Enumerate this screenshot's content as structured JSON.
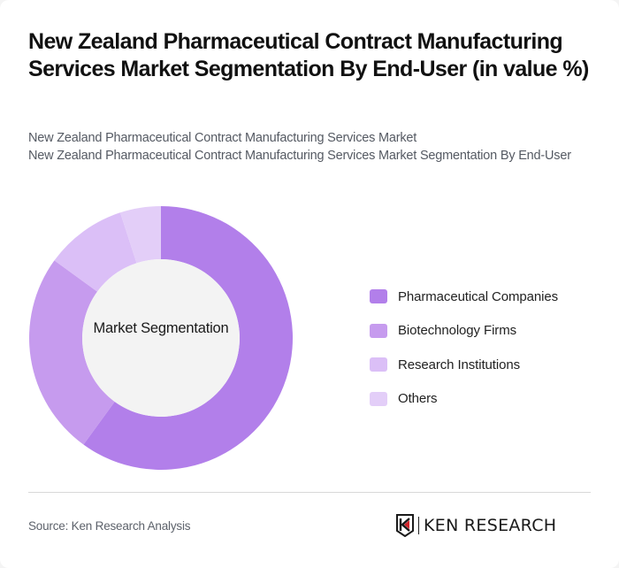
{
  "header": {
    "title": "New Zealand Pharmaceutical Contract Manufacturing Services Market Segmentation By End-User (in value %)",
    "subtitle_line1": "New Zealand Pharmaceutical Contract Manufacturing Services Market",
    "subtitle_line2": "New Zealand Pharmaceutical Contract Manufacturing Services Market Segmentation By End-User"
  },
  "chart": {
    "center_label": "Market Segmentation"
  },
  "legend": [
    {
      "label": "Pharmaceutical Companies",
      "color": "#b27fea"
    },
    {
      "label": "Biotechnology Firms",
      "color": "#c69bee"
    },
    {
      "label": "Research Institutions",
      "color": "#dbbff7"
    },
    {
      "label": "Others",
      "color": "#e3cef8"
    }
  ],
  "footer": {
    "source": "Source: Ken Research Analysis",
    "logo_text": "KEN RESEARCH"
  },
  "chart_data": {
    "type": "pie",
    "variant": "donut",
    "title": "New Zealand Pharmaceutical Contract Manufacturing Services Market Segmentation By End-User (in value %)",
    "center_label": "Market Segmentation",
    "categories": [
      "Pharmaceutical Companies",
      "Biotechnology Firms",
      "Research Institutions",
      "Others"
    ],
    "values": [
      60,
      25,
      10,
      5
    ],
    "colors": [
      "#b27fea",
      "#c69bee",
      "#dbbff7",
      "#e3cef8"
    ],
    "legend_position": "right",
    "start_angle": "12 o'clock, clockwise"
  }
}
